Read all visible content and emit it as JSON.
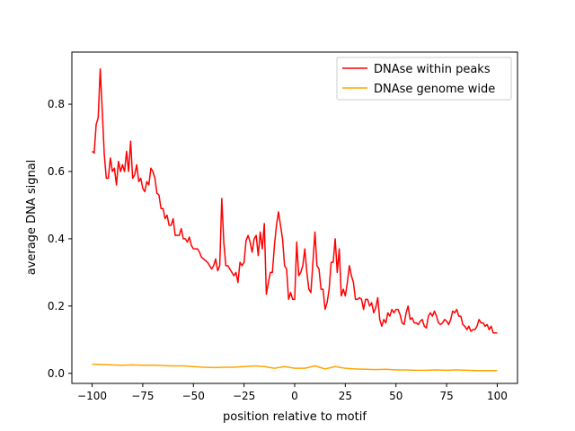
{
  "chart_data": {
    "type": "line",
    "title": "",
    "xlabel": "position relative to motif",
    "ylabel": "average DNA signal",
    "xlim": [
      -110,
      110
    ],
    "ylim": [
      -0.03,
      0.955
    ],
    "xticks": [
      -100,
      -75,
      -50,
      -25,
      0,
      25,
      50,
      75,
      100
    ],
    "yticks": [
      0.0,
      0.2,
      0.4,
      0.6,
      0.8
    ],
    "ytick_labels": [
      "0.0",
      "0.2",
      "0.4",
      "0.6",
      "0.8"
    ],
    "grid": false,
    "legend": "top-right",
    "series": [
      {
        "name": "DNAse within peaks",
        "color": "#ff0000",
        "x_start": -100,
        "x_step": 1,
        "values": [
          0.66,
          0.655,
          0.74,
          0.76,
          0.905,
          0.78,
          0.65,
          0.58,
          0.58,
          0.64,
          0.6,
          0.61,
          0.56,
          0.63,
          0.6,
          0.62,
          0.6,
          0.66,
          0.6,
          0.69,
          0.58,
          0.59,
          0.62,
          0.57,
          0.58,
          0.55,
          0.54,
          0.57,
          0.56,
          0.61,
          0.6,
          0.58,
          0.535,
          0.53,
          0.49,
          0.49,
          0.46,
          0.47,
          0.44,
          0.44,
          0.46,
          0.41,
          0.41,
          0.41,
          0.43,
          0.4,
          0.4,
          0.39,
          0.405,
          0.38,
          0.37,
          0.37,
          0.37,
          0.36,
          0.345,
          0.34,
          0.335,
          0.33,
          0.32,
          0.31,
          0.32,
          0.34,
          0.305,
          0.32,
          0.52,
          0.39,
          0.32,
          0.32,
          0.31,
          0.3,
          0.29,
          0.3,
          0.27,
          0.33,
          0.32,
          0.33,
          0.395,
          0.41,
          0.39,
          0.36,
          0.4,
          0.41,
          0.35,
          0.42,
          0.37,
          0.445,
          0.235,
          0.27,
          0.3,
          0.3,
          0.38,
          0.44,
          0.48,
          0.44,
          0.4,
          0.32,
          0.31,
          0.22,
          0.24,
          0.22,
          0.22,
          0.39,
          0.29,
          0.3,
          0.32,
          0.37,
          0.3,
          0.25,
          0.24,
          0.33,
          0.42,
          0.32,
          0.31,
          0.25,
          0.25,
          0.19,
          0.21,
          0.25,
          0.33,
          0.33,
          0.4,
          0.3,
          0.37,
          0.23,
          0.25,
          0.23,
          0.27,
          0.32,
          0.29,
          0.27,
          0.22,
          0.22,
          0.225,
          0.22,
          0.19,
          0.22,
          0.22,
          0.2,
          0.21,
          0.18,
          0.195,
          0.225,
          0.16,
          0.14,
          0.16,
          0.15,
          0.18,
          0.17,
          0.19,
          0.18,
          0.19,
          0.19,
          0.175,
          0.15,
          0.145,
          0.18,
          0.2,
          0.16,
          0.165,
          0.15,
          0.15,
          0.145,
          0.155,
          0.16,
          0.14,
          0.135,
          0.17,
          0.18,
          0.17,
          0.185,
          0.17,
          0.15,
          0.145,
          0.15,
          0.16,
          0.155,
          0.145,
          0.16,
          0.185,
          0.18,
          0.19,
          0.17,
          0.17,
          0.145,
          0.14,
          0.13,
          0.14,
          0.125,
          0.13,
          0.13,
          0.14,
          0.16,
          0.15,
          0.15,
          0.14,
          0.145,
          0.13,
          0.14,
          0.12,
          0.12,
          0.12
        ]
      },
      {
        "name": "DNAse genome wide",
        "color": "#ffa500",
        "x_start": -100,
        "x_step": 5,
        "values": [
          0.027,
          0.026,
          0.025,
          0.024,
          0.025,
          0.024,
          0.024,
          0.023,
          0.022,
          0.022,
          0.02,
          0.018,
          0.017,
          0.018,
          0.018,
          0.02,
          0.022,
          0.02,
          0.015,
          0.02,
          0.015,
          0.015,
          0.022,
          0.013,
          0.02,
          0.015,
          0.013,
          0.012,
          0.011,
          0.012,
          0.01,
          0.01,
          0.009,
          0.009,
          0.01,
          0.009,
          0.01,
          0.009,
          0.008,
          0.008,
          0.008
        ]
      }
    ]
  }
}
